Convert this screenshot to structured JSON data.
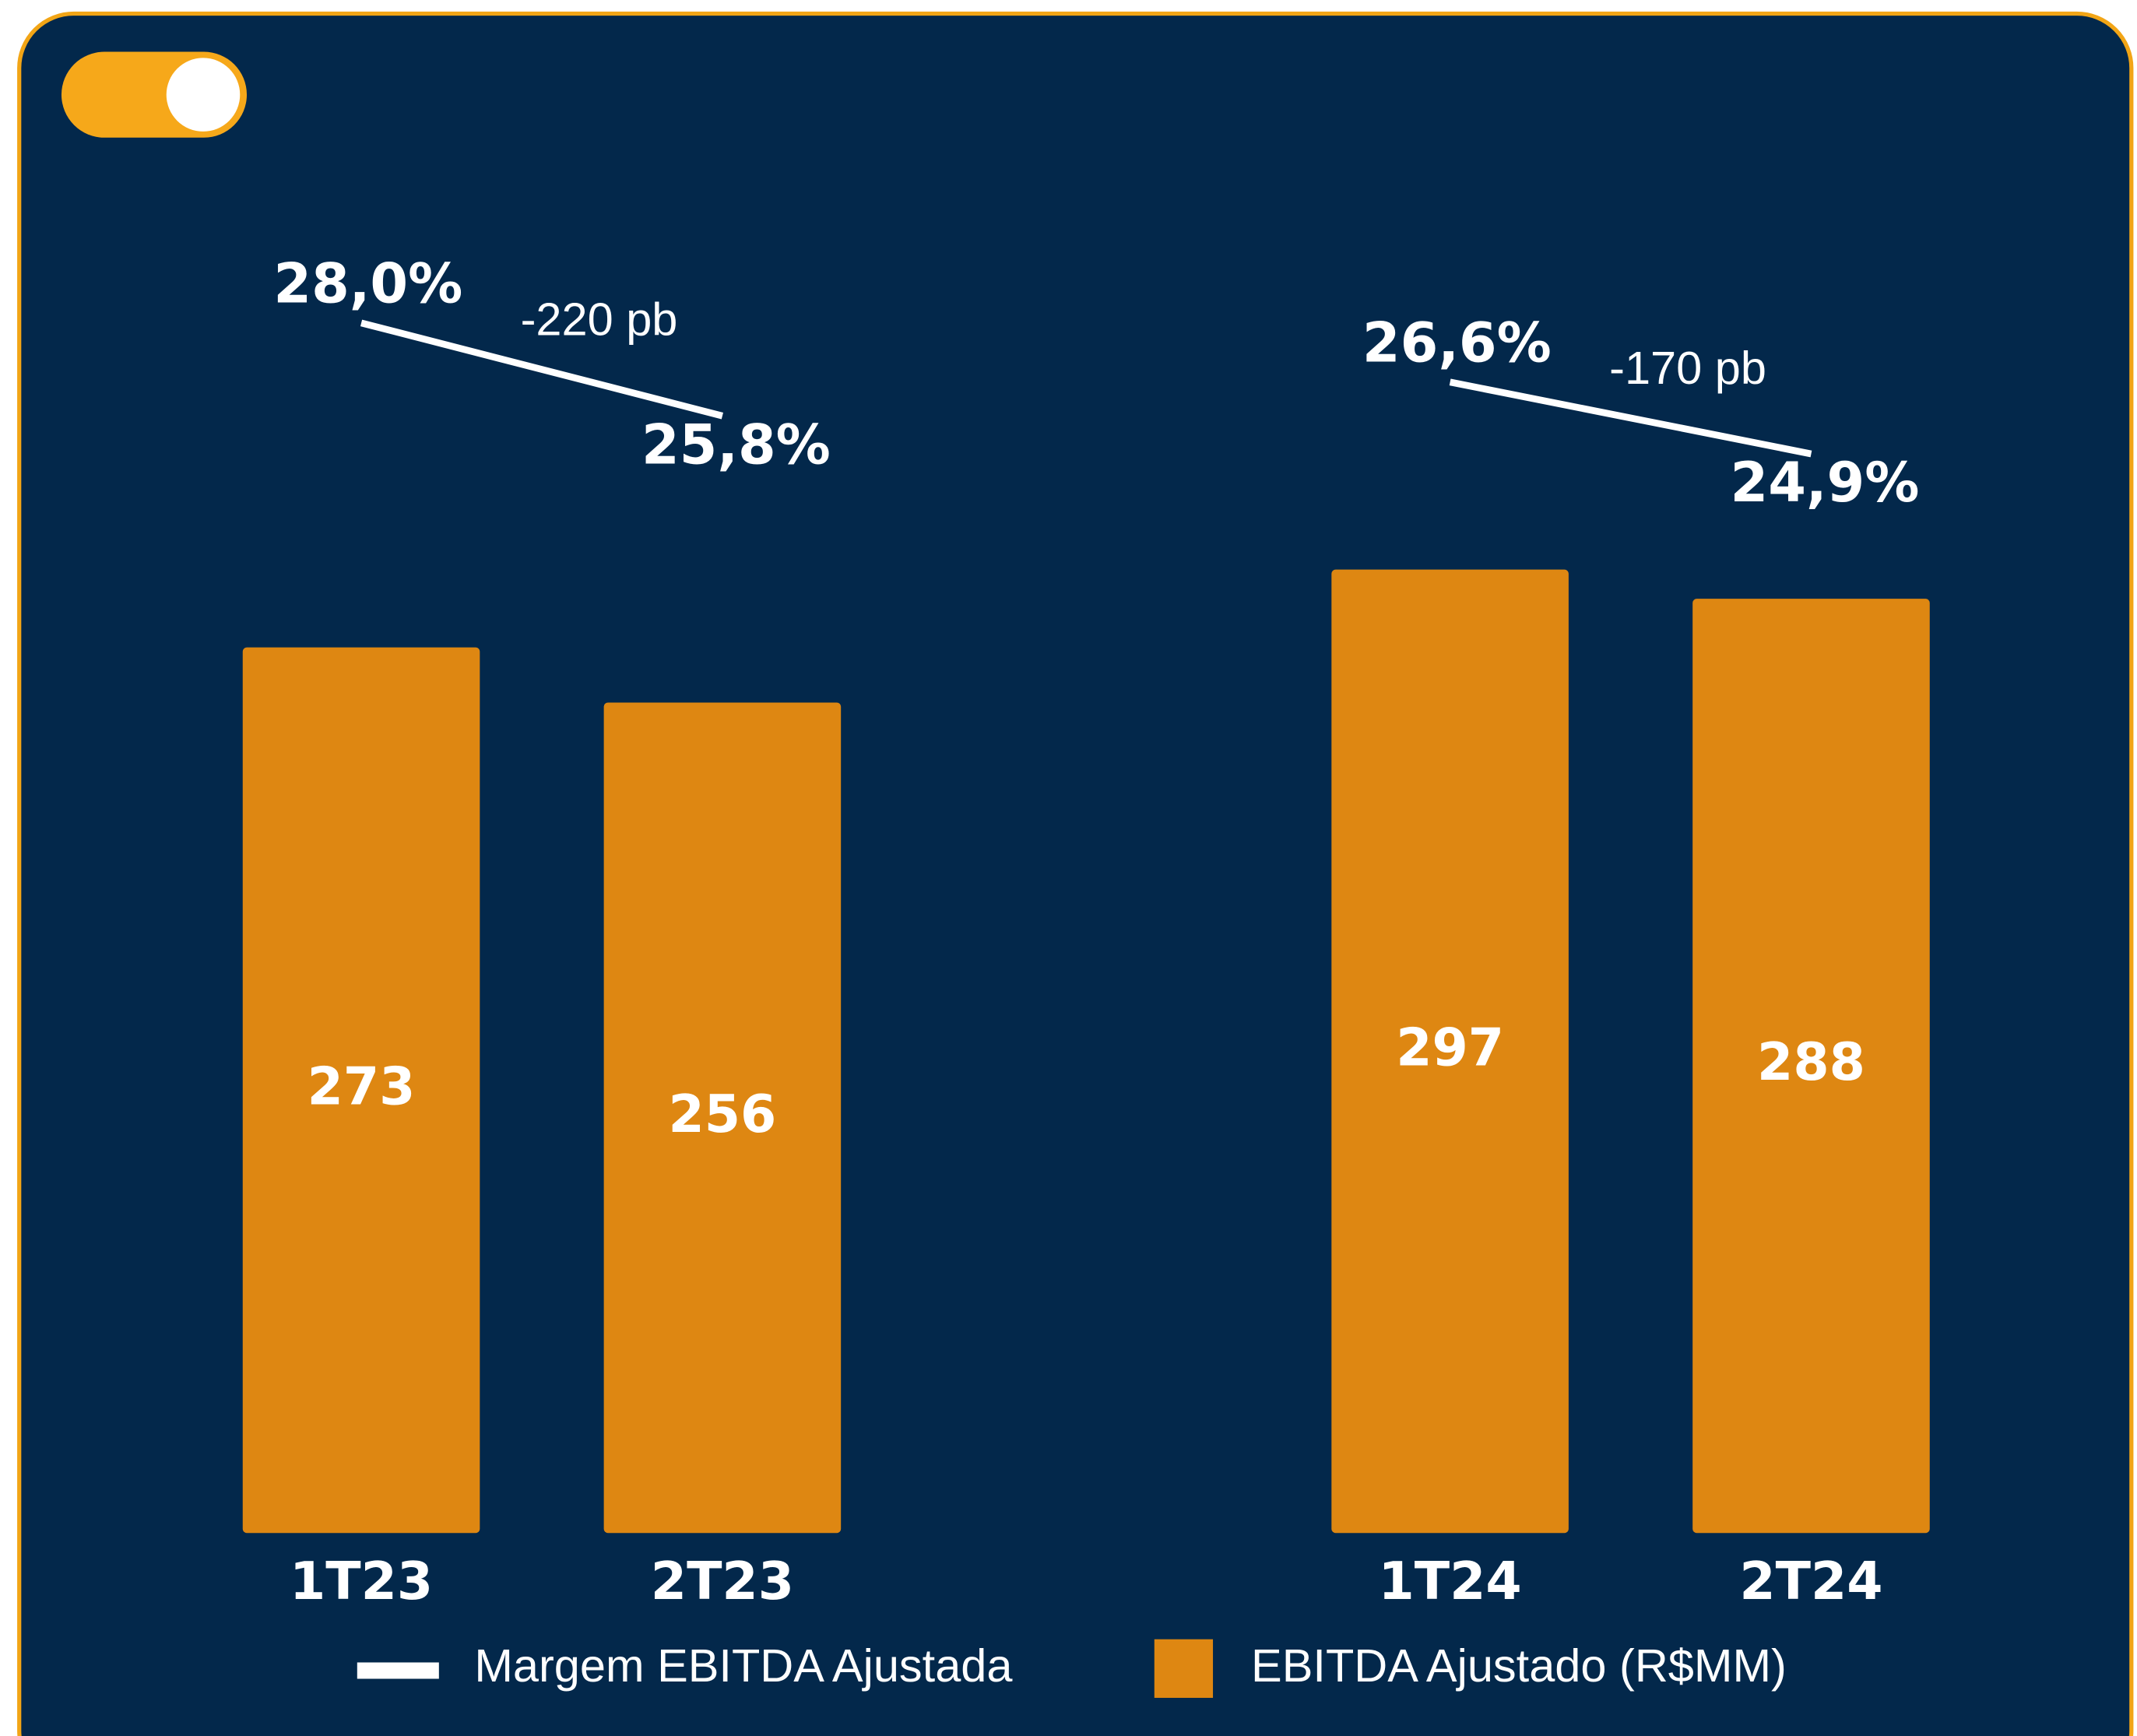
{
  "chart_data": {
    "type": "bar",
    "categories": [
      "1T23",
      "2T23",
      "1T24",
      "2T24"
    ],
    "series": [
      {
        "name": "EBITDA Ajustado (R$MM)",
        "type": "bar",
        "color": "#de8712",
        "values": [
          273,
          256,
          297,
          288
        ]
      },
      {
        "name": "Margem EBITDA Ajustada",
        "type": "line",
        "color": "#ffffff",
        "values": [
          28.0,
          25.8,
          26.6,
          24.9
        ],
        "value_labels": [
          "28,0%",
          "25,8%",
          "26,6%",
          "24,9%"
        ]
      }
    ],
    "annotations": [
      "-220 pb",
      "-170 pb"
    ]
  }
}
